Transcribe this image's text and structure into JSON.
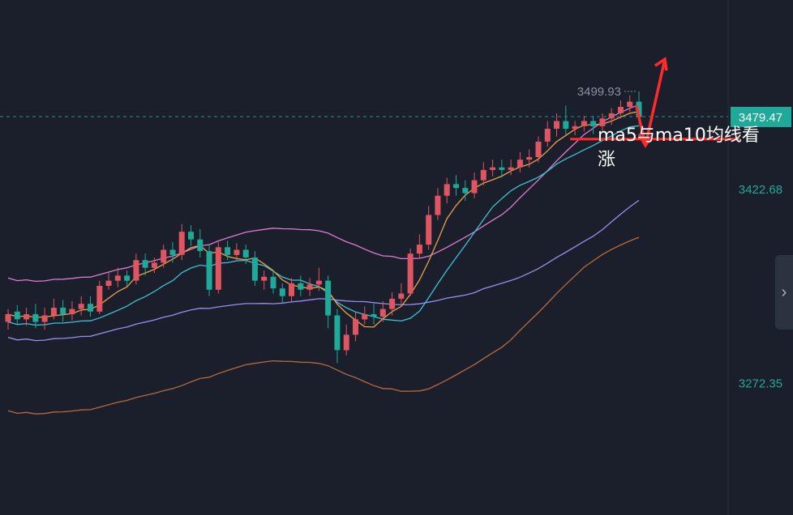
{
  "chart_data": {
    "type": "candlestick",
    "y_ticks": [
      "3422.68",
      "3272.35"
    ],
    "price_labels": {
      "current": "3479.47",
      "high": "3499.93"
    },
    "current_price": 3479.47,
    "high_price": 3499.93,
    "ylim": [
      3170,
      3570
    ],
    "annotation": "ma5与ma10均线看涨",
    "colors": {
      "up": "#e05562",
      "down": "#1fa998",
      "ma5": "#e8a24a",
      "ma10": "#3ec3d4",
      "ma_long": "#9b8cf0",
      "boll_upper": "#e07bd4",
      "boll_lower": "#b86a38",
      "current_line": "#1fa998",
      "arrow": "#ff2b2b",
      "current_label_bg": "#1fa998"
    },
    "candles": [
      [
        3320,
        3326,
        3314,
        3330
      ],
      [
        3328,
        3322,
        3318,
        3333
      ],
      [
        3322,
        3326,
        3317,
        3331
      ],
      [
        3326,
        3320,
        3315,
        3334
      ],
      [
        3320,
        3325,
        3314,
        3331
      ],
      [
        3325,
        3331,
        3322,
        3338
      ],
      [
        3331,
        3326,
        3320,
        3337
      ],
      [
        3326,
        3330,
        3321,
        3336
      ],
      [
        3330,
        3334,
        3325,
        3340
      ],
      [
        3334,
        3328,
        3324,
        3340
      ],
      [
        3328,
        3348,
        3326,
        3352
      ],
      [
        3348,
        3352,
        3345,
        3358
      ],
      [
        3352,
        3356,
        3347,
        3362
      ],
      [
        3356,
        3352,
        3348,
        3360
      ],
      [
        3352,
        3368,
        3349,
        3373
      ],
      [
        3368,
        3362,
        3356,
        3373
      ],
      [
        3362,
        3366,
        3358,
        3370
      ],
      [
        3366,
        3376,
        3362,
        3380
      ],
      [
        3376,
        3372,
        3366,
        3382
      ],
      [
        3372,
        3390,
        3368,
        3396
      ],
      [
        3390,
        3384,
        3379,
        3395
      ],
      [
        3384,
        3375,
        3370,
        3392
      ],
      [
        3375,
        3345,
        3340,
        3380
      ],
      [
        3345,
        3378,
        3342,
        3382
      ],
      [
        3378,
        3372,
        3368,
        3383
      ],
      [
        3372,
        3376,
        3368,
        3381
      ],
      [
        3376,
        3370,
        3365,
        3380
      ],
      [
        3370,
        3352,
        3348,
        3375
      ],
      [
        3352,
        3355,
        3345,
        3360
      ],
      [
        3355,
        3346,
        3342,
        3360
      ],
      [
        3346,
        3340,
        3334,
        3350
      ],
      [
        3340,
        3350,
        3336,
        3354
      ],
      [
        3350,
        3345,
        3340,
        3356
      ],
      [
        3345,
        3349,
        3340,
        3354
      ],
      [
        3349,
        3352,
        3344,
        3362
      ],
      [
        3352,
        3325,
        3315,
        3356
      ],
      [
        3325,
        3298,
        3288,
        3330
      ],
      [
        3298,
        3310,
        3294,
        3318
      ],
      [
        3310,
        3322,
        3305,
        3328
      ],
      [
        3322,
        3326,
        3318,
        3332
      ],
      [
        3326,
        3324,
        3318,
        3334
      ],
      [
        3324,
        3330,
        3320,
        3336
      ],
      [
        3330,
        3338,
        3325,
        3343
      ],
      [
        3338,
        3342,
        3334,
        3350
      ],
      [
        3342,
        3373,
        3340,
        3377
      ],
      [
        3373,
        3380,
        3369,
        3388
      ],
      [
        3380,
        3403,
        3376,
        3410
      ],
      [
        3403,
        3418,
        3399,
        3424
      ],
      [
        3418,
        3427,
        3412,
        3432
      ],
      [
        3427,
        3424,
        3418,
        3434
      ],
      [
        3424,
        3420,
        3414,
        3430
      ],
      [
        3420,
        3430,
        3416,
        3436
      ],
      [
        3430,
        3438,
        3426,
        3444
      ],
      [
        3438,
        3440,
        3433,
        3446
      ],
      [
        3440,
        3438,
        3432,
        3446
      ],
      [
        3438,
        3440,
        3434,
        3446
      ],
      [
        3440,
        3446,
        3436,
        3452
      ],
      [
        3446,
        3448,
        3440,
        3454
      ],
      [
        3448,
        3460,
        3444,
        3464
      ],
      [
        3460,
        3470,
        3456,
        3476
      ],
      [
        3470,
        3476,
        3464,
        3482
      ],
      [
        3476,
        3470,
        3465,
        3488
      ],
      [
        3470,
        3472,
        3465,
        3476
      ],
      [
        3472,
        3476,
        3468,
        3480
      ],
      [
        3476,
        3472,
        3466,
        3480
      ],
      [
        3472,
        3478,
        3468,
        3482
      ],
      [
        3478,
        3482,
        3473,
        3486
      ],
      [
        3482,
        3487,
        3478,
        3492
      ],
      [
        3487,
        3491,
        3483,
        3496
      ],
      [
        3491,
        3479,
        3474,
        3499
      ]
    ],
    "ma5_series": [],
    "ma10_series": []
  },
  "side_tab": {
    "label": "›"
  }
}
